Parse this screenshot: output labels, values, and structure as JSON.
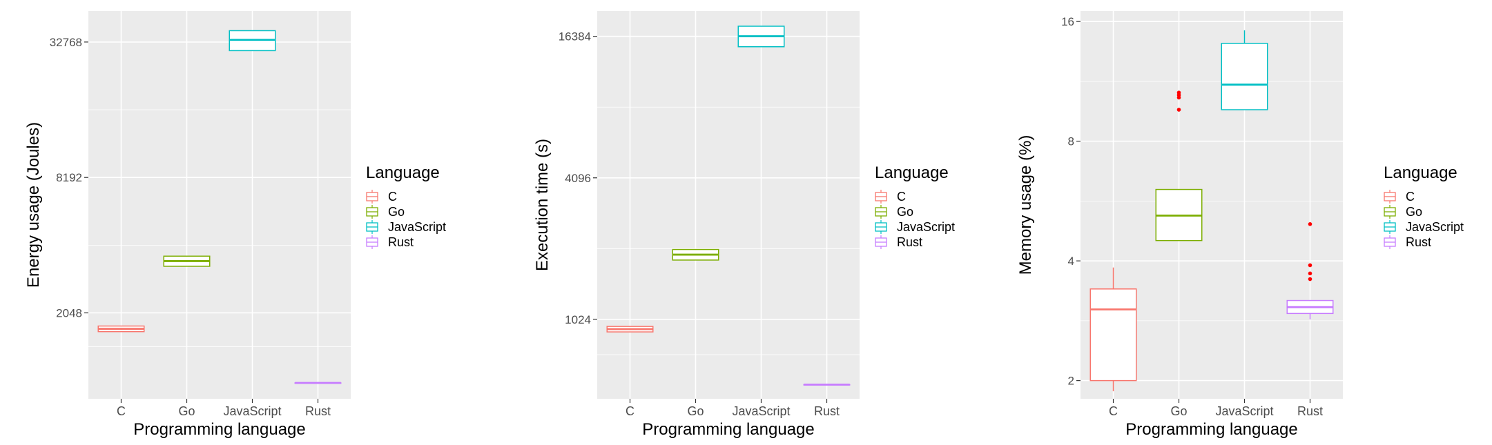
{
  "chart_data": [
    {
      "type": "boxplot",
      "ylabel": "Energy usage (Joules)",
      "xlabel": "Programming language",
      "y_scale": "log2",
      "y_ticks": [
        2048,
        8192,
        32768
      ],
      "y_tick_labels": [
        "2048",
        "8192",
        "32768"
      ],
      "ylim": [
        850,
        45000
      ],
      "categories": [
        "C",
        "Go",
        "JavaScript",
        "Rust"
      ],
      "boxes": [
        {
          "name": "C",
          "q1": 1690,
          "median": 1740,
          "q3": 1790,
          "whisker_low": 1690,
          "whisker_high": 1790,
          "outliers": []
        },
        {
          "name": "Go",
          "q1": 3300,
          "median": 3480,
          "q3": 3660,
          "whisker_low": 3300,
          "whisker_high": 3660,
          "outliers": []
        },
        {
          "name": "JavaScript",
          "q1": 30000,
          "median": 33500,
          "q3": 36800,
          "whisker_low": 30000,
          "whisker_high": 36800,
          "outliers": []
        },
        {
          "name": "Rust",
          "q1": 1000,
          "median": 1000,
          "q3": 1000,
          "whisker_low": 1000,
          "whisker_high": 1000,
          "outliers": []
        }
      ],
      "grid": true,
      "legend": {
        "title": "Language",
        "position": "right",
        "entries": [
          "C",
          "Go",
          "JavaScript",
          "Rust"
        ]
      }
    },
    {
      "type": "boxplot",
      "ylabel": "Execution time (s)",
      "xlabel": "Programming language",
      "y_scale": "log2",
      "y_ticks": [
        1024,
        4096,
        16384
      ],
      "y_tick_labels": [
        "1024",
        "4096",
        "16384"
      ],
      "ylim": [
        470,
        21000
      ],
      "categories": [
        "C",
        "Go",
        "JavaScript",
        "Rust"
      ],
      "boxes": [
        {
          "name": "C",
          "q1": 905,
          "median": 930,
          "q3": 955,
          "whisker_low": 905,
          "whisker_high": 955,
          "outliers": []
        },
        {
          "name": "Go",
          "q1": 1830,
          "median": 1930,
          "q3": 2030,
          "whisker_low": 1830,
          "whisker_high": 2030,
          "outliers": []
        },
        {
          "name": "JavaScript",
          "q1": 14800,
          "median": 16400,
          "q3": 18100,
          "whisker_low": 14800,
          "whisker_high": 18100,
          "outliers": []
        },
        {
          "name": "Rust",
          "q1": 540,
          "median": 540,
          "q3": 540,
          "whisker_low": 540,
          "whisker_high": 540,
          "outliers": []
        }
      ],
      "grid": true,
      "legend": {
        "title": "Language",
        "position": "right",
        "entries": [
          "C",
          "Go",
          "JavaScript",
          "Rust"
        ]
      }
    },
    {
      "type": "boxplot",
      "ylabel": "Memory usage (%)",
      "xlabel": "Programming language",
      "y_scale": "log2",
      "y_ticks": [
        2,
        4,
        8,
        16
      ],
      "y_tick_labels": [
        "2",
        "4",
        "8",
        "16"
      ],
      "ylim": [
        1.8,
        17
      ],
      "categories": [
        "C",
        "Go",
        "JavaScript",
        "Rust"
      ],
      "boxes": [
        {
          "name": "C",
          "q1": 2.0,
          "median": 3.02,
          "q3": 3.4,
          "whisker_low": 1.88,
          "whisker_high": 3.85,
          "outliers": []
        },
        {
          "name": "Go",
          "q1": 4.5,
          "median": 5.2,
          "q3": 6.05,
          "whisker_low": 4.5,
          "whisker_high": 6.05,
          "outliers": [
            9.6,
            10.3,
            10.45,
            10.6
          ]
        },
        {
          "name": "JavaScript",
          "q1": 9.6,
          "median": 11.1,
          "q3": 14.1,
          "whisker_low": 9.6,
          "whisker_high": 15.2,
          "outliers": []
        },
        {
          "name": "Rust",
          "q1": 2.95,
          "median": 3.06,
          "q3": 3.18,
          "whisker_low": 2.85,
          "whisker_high": 3.18,
          "outliers": [
            3.6,
            3.72,
            3.9,
            4.95
          ]
        }
      ],
      "grid": true,
      "legend": {
        "title": "Language",
        "position": "right",
        "entries": [
          "C",
          "Go",
          "JavaScript",
          "Rust"
        ]
      }
    }
  ],
  "colors": {
    "C": "#F8766D",
    "Go": "#7CAE00",
    "JavaScript": "#00BFC4",
    "Rust": "#C77CFF",
    "outlier": "#FF0000",
    "panel_background": "#EBEBEB",
    "gridline": "#FFFFFF"
  }
}
